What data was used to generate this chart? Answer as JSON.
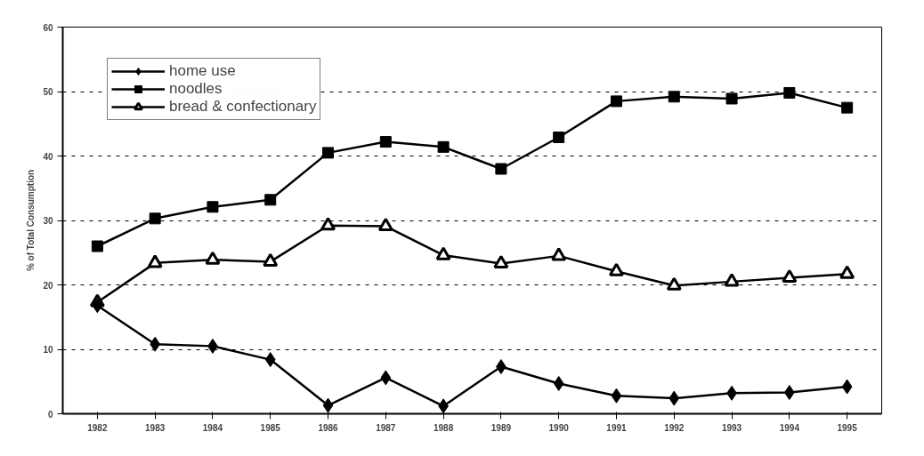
{
  "chart_data": {
    "type": "line",
    "ylabel": "% of Total Consumption",
    "categories": [
      "1982",
      "1983",
      "1984",
      "1985",
      "1986",
      "1987",
      "1988",
      "1989",
      "1990",
      "1991",
      "1992",
      "1993",
      "1994",
      "1995"
    ],
    "series": [
      {
        "name": "home use",
        "color": "#000000",
        "marker": "diamond",
        "values": [
          16.8,
          10.8,
          10.5,
          8.4,
          1.3,
          5.6,
          1.2,
          7.3,
          4.7,
          2.8,
          2.4,
          3.2,
          3.3,
          4.2
        ]
      },
      {
        "name": "noodles",
        "color": "#000000",
        "marker": "square",
        "values": [
          26,
          30.3,
          32.1,
          33.2,
          40.5,
          42.2,
          41.4,
          38,
          42.9,
          48.5,
          49.2,
          48.9,
          49.8,
          47.5
        ]
      },
      {
        "name": "bread & confectionary",
        "color": "#000000",
        "marker": "triangle",
        "values": [
          17.3,
          23.4,
          23.9,
          23.6,
          29.2,
          29.1,
          24.6,
          23.3,
          24.5,
          22.1,
          19.9,
          20.5,
          21.1,
          21.7
        ]
      }
    ],
    "ylim": [
      0,
      60
    ],
    "yticks": [
      0,
      10,
      20,
      30,
      40,
      50,
      60
    ],
    "grid": "y",
    "legend": "top left"
  }
}
